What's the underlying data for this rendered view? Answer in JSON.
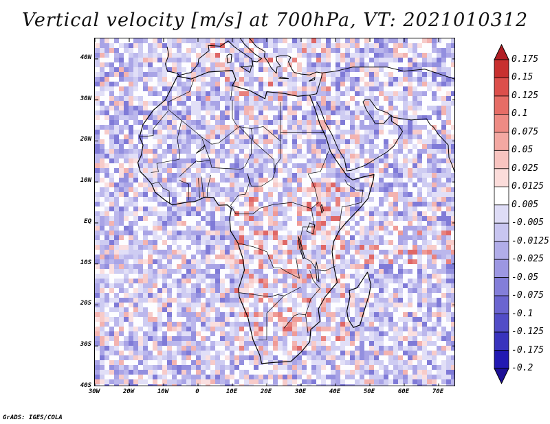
{
  "title": "Vertical velocity [m/s] at 700hPa, VT: 2021010312",
  "footer": "GrADS: IGES/COLA",
  "map": {
    "region": "Africa",
    "lat_labels": [
      "40N",
      "30N",
      "20N",
      "10N",
      "EQ",
      "10S",
      "20S",
      "30S",
      "40S"
    ],
    "lat_values": [
      40,
      30,
      20,
      10,
      0,
      -10,
      -20,
      -30,
      -40
    ],
    "lon_labels": [
      "30W",
      "20W",
      "10W",
      "0",
      "10E",
      "20E",
      "30E",
      "40E",
      "50E",
      "60E",
      "70E"
    ],
    "lon_values": [
      -30,
      -20,
      -10,
      0,
      10,
      20,
      30,
      40,
      50,
      60,
      70
    ],
    "lat_range": [
      -40,
      45
    ],
    "lon_range": [
      -30,
      75
    ]
  },
  "colorbar": {
    "labels": [
      "0.175",
      "0.15",
      "0.125",
      "0.1",
      "0.075",
      "0.05",
      "0.025",
      "0.0125",
      "0.005",
      "-0.005",
      "-0.0125",
      "-0.025",
      "-0.05",
      "-0.075",
      "-0.1",
      "-0.125",
      "-0.175",
      "-0.2"
    ],
    "colors": [
      "#b11f25",
      "#c8302f",
      "#dc4f4b",
      "#e66d66",
      "#ee8b84",
      "#f3a8a2",
      "#f8c4c0",
      "#fbdcda",
      "#ffffff",
      "#dedcf6",
      "#c8c5f0",
      "#b1ade9",
      "#9c97e2",
      "#837ed9",
      "#6b65d0",
      "#524dc7",
      "#3933bd",
      "#2219b2",
      "#1d1096"
    ]
  }
}
